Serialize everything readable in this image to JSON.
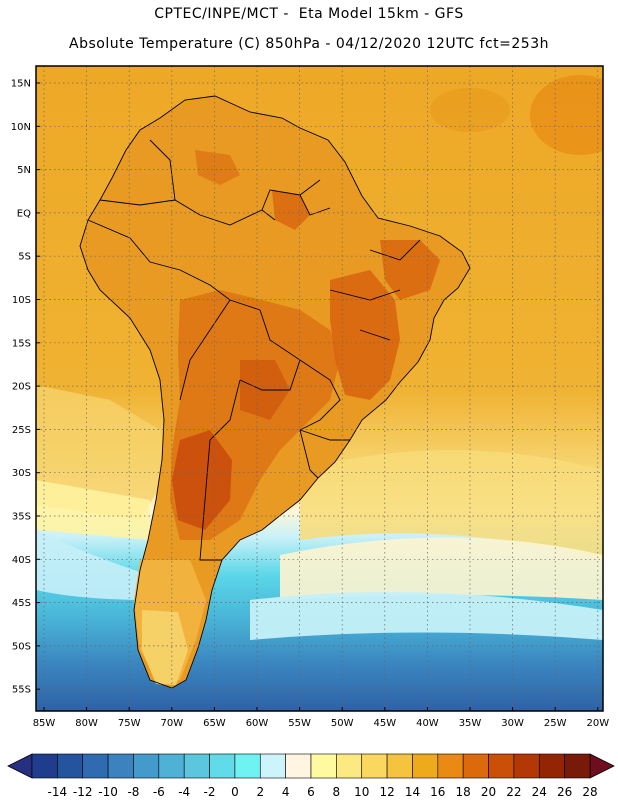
{
  "header": {
    "line1": "CPTEC/INPE/MCT -  Eta Model 15km - GFS",
    "line2": "Absolute Temperature (C) 850hPa - 04/12/2020 12UTC fct=253h"
  },
  "map": {
    "region": "South America",
    "lat_labels": [
      "15N",
      "10N",
      "5N",
      "EQ",
      "5S",
      "10S",
      "15S",
      "20S",
      "25S",
      "30S",
      "35S",
      "40S",
      "45S",
      "50S",
      "55S"
    ],
    "lon_labels": [
      "85W",
      "80W",
      "75W",
      "70W",
      "65W",
      "60W",
      "55W",
      "50W",
      "45W",
      "40W",
      "35W",
      "30W",
      "25W",
      "20W"
    ]
  },
  "colorbar": {
    "ticks": [
      "-14",
      "-12",
      "-10",
      "-8",
      "-6",
      "-4",
      "-2",
      "0",
      "2",
      "4",
      "6",
      "8",
      "10",
      "12",
      "14",
      "16",
      "18",
      "20",
      "22",
      "24",
      "26",
      "28"
    ],
    "colors": [
      "#1f3d8c",
      "#25549e",
      "#2f6bb0",
      "#3b82bf",
      "#449acb",
      "#4fb1d6",
      "#5cc6df",
      "#62dbe8",
      "#6ef2f2",
      "#cdf3fb",
      "#fff5e0",
      "#fffaa0",
      "#fde982",
      "#fad860",
      "#f4c43e",
      "#eeaa1b",
      "#e88a14",
      "#dc6a0b",
      "#cc4f08",
      "#b43806",
      "#932505",
      "#781a0a"
    ],
    "under_color": "#262f82",
    "over_color": "#6e0d1e"
  }
}
